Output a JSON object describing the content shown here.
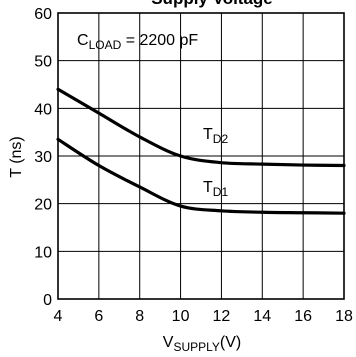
{
  "chart_data": {
    "type": "line",
    "title": "Supply Voltage",
    "xlabel": {
      "main": "V",
      "sub": "SUPPLY",
      "unit": "(V)"
    },
    "ylabel": "T (ns)",
    "xlim": [
      4,
      18
    ],
    "ylim": [
      0,
      60
    ],
    "x_ticks": [
      4,
      6,
      8,
      10,
      12,
      14,
      16,
      18
    ],
    "y_ticks": [
      0,
      10,
      20,
      30,
      40,
      50,
      60
    ],
    "grid": true,
    "annotations": [
      {
        "main": "C",
        "sub": "LOAD",
        "rest": " = 2200 pF"
      }
    ],
    "series": [
      {
        "name": "TD2",
        "label_main": "T",
        "label_sub": "D2",
        "points": [
          [
            4,
            44
          ],
          [
            6,
            39
          ],
          [
            8,
            34
          ],
          [
            10,
            30
          ],
          [
            12,
            28.6
          ],
          [
            14,
            28.3
          ],
          [
            16,
            28.1
          ],
          [
            18,
            28
          ]
        ]
      },
      {
        "name": "TD1",
        "label_main": "T",
        "label_sub": "D1",
        "points": [
          [
            4,
            33.5
          ],
          [
            6,
            28
          ],
          [
            8,
            23.5
          ],
          [
            10,
            19.5
          ],
          [
            12,
            18.5
          ],
          [
            14,
            18.2
          ],
          [
            16,
            18.1
          ],
          [
            18,
            18
          ]
        ]
      }
    ]
  }
}
